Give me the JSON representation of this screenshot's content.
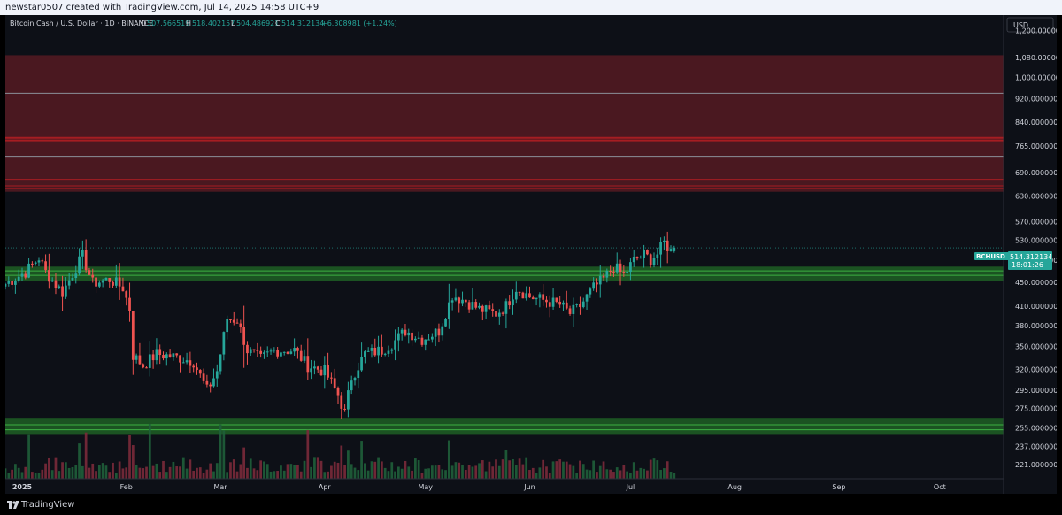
{
  "header": {
    "attribution": "newstar0507 created with TradingView.com, Jul 14, 2025 14:58 UTC+9"
  },
  "footer": {
    "brand": "TradingView"
  },
  "legend": {
    "symbol": "Bitcoin Cash / U.S. Dollar · 1D · BINANCE",
    "o_label": "O",
    "o_value": "507.566519",
    "h_label": "H",
    "h_value": "518.402157",
    "l_label": "L",
    "l_value": "504.486921",
    "c_label": "C",
    "c_value": "514.312134",
    "change": "+6.308981 (+1.24%)"
  },
  "price_tag": {
    "ticker": "BCHUSD",
    "price": "514.312134",
    "countdown": "18:01:26"
  },
  "colors": {
    "up": "#26a69a",
    "down": "#ef5350",
    "resistance_zone": "#4a1820",
    "resistance_line": "#a51d22",
    "support_zone": "#1e5f24",
    "support_line": "#3cb043",
    "background": "#0d1017",
    "axis_text": "#d1d4dc"
  },
  "chart_data": {
    "type": "candlestick",
    "currency": "USD",
    "y_scale": "log",
    "ylim": [
      209,
      1275
    ],
    "y_ticks": [
      {
        "value": 1200,
        "label": "1,200.000000"
      },
      {
        "value": 1080,
        "label": "1,080.000000"
      },
      {
        "value": 1000,
        "label": "1,000.000000"
      },
      {
        "value": 920,
        "label": "920.000000"
      },
      {
        "value": 840,
        "label": "840.000000"
      },
      {
        "value": 765,
        "label": "765.000000"
      },
      {
        "value": 690,
        "label": "690.000000"
      },
      {
        "value": 630,
        "label": "630.000000"
      },
      {
        "value": 570,
        "label": "570.000000"
      },
      {
        "value": 530,
        "label": "530.000000"
      },
      {
        "value": 490,
        "label": "490.000000"
      },
      {
        "value": 450,
        "label": "450.000000"
      },
      {
        "value": 410,
        "label": "410.000000"
      },
      {
        "value": 380,
        "label": "380.000000"
      },
      {
        "value": 350,
        "label": "350.000000"
      },
      {
        "value": 320,
        "label": "320.000000"
      },
      {
        "value": 295,
        "label": "295.000000"
      },
      {
        "value": 275,
        "label": "275.000000"
      },
      {
        "value": 255,
        "label": "255.000000"
      },
      {
        "value": 237,
        "label": "237.000000"
      },
      {
        "value": 221,
        "label": "221.000000"
      }
    ],
    "x_ticks": [
      {
        "date": "2025-01-01",
        "label": "2025"
      },
      {
        "date": "2025-02-01",
        "label": "Feb"
      },
      {
        "date": "2025-03-01",
        "label": "Mar"
      },
      {
        "date": "2025-04-01",
        "label": "Apr"
      },
      {
        "date": "2025-05-01",
        "label": "May"
      },
      {
        "date": "2025-06-01",
        "label": "Jun"
      },
      {
        "date": "2025-07-01",
        "label": "Jul"
      },
      {
        "date": "2025-08-01",
        "label": "Aug"
      },
      {
        "date": "2025-09-01",
        "label": "Sep"
      },
      {
        "date": "2025-10-01",
        "label": "Oct"
      }
    ],
    "xlim": [
      "2024-12-27",
      "2025-10-20"
    ],
    "last_price": 514.312134,
    "resistance_zones": [
      [
        640,
        1090
      ]
    ],
    "resistance_lines": [
      940,
      790,
      782,
      735,
      672,
      655,
      648
    ],
    "support_zones": [
      [
        452,
        478
      ],
      [
        248,
        265
      ]
    ],
    "support_lines": [
      470,
      462,
      258,
      253
    ],
    "ohlc_anchors": [
      {
        "date": "2024-12-27",
        "close": 447
      },
      {
        "date": "2025-01-02",
        "close": 468
      },
      {
        "date": "2025-01-06",
        "close": 495
      },
      {
        "date": "2025-01-08",
        "close": 468
      },
      {
        "date": "2025-01-13",
        "close": 432
      },
      {
        "date": "2025-01-16",
        "close": 465
      },
      {
        "date": "2025-01-19",
        "close": 498
      },
      {
        "date": "2025-01-22",
        "close": 448
      },
      {
        "date": "2025-01-27",
        "close": 455
      },
      {
        "date": "2025-01-31",
        "close": 440
      },
      {
        "date": "2025-02-02",
        "close": 405
      },
      {
        "date": "2025-02-03",
        "close": 338
      },
      {
        "date": "2025-02-06",
        "close": 325
      },
      {
        "date": "2025-02-10",
        "close": 340
      },
      {
        "date": "2025-02-17",
        "close": 335
      },
      {
        "date": "2025-02-21",
        "close": 330
      },
      {
        "date": "2025-02-25",
        "close": 295
      },
      {
        "date": "2025-02-28",
        "close": 318
      },
      {
        "date": "2025-03-03",
        "close": 390
      },
      {
        "date": "2025-03-06",
        "close": 388
      },
      {
        "date": "2025-03-09",
        "close": 345
      },
      {
        "date": "2025-03-13",
        "close": 333
      },
      {
        "date": "2025-03-17",
        "close": 345
      },
      {
        "date": "2025-03-23",
        "close": 345
      },
      {
        "date": "2025-03-27",
        "close": 325
      },
      {
        "date": "2025-04-01",
        "close": 318
      },
      {
        "date": "2025-04-05",
        "close": 290
      },
      {
        "date": "2025-04-07",
        "close": 270
      },
      {
        "date": "2025-04-09",
        "close": 310
      },
      {
        "date": "2025-04-13",
        "close": 340
      },
      {
        "date": "2025-04-18",
        "close": 345
      },
      {
        "date": "2025-04-22",
        "close": 358
      },
      {
        "date": "2025-04-25",
        "close": 372
      },
      {
        "date": "2025-04-30",
        "close": 360
      },
      {
        "date": "2025-05-05",
        "close": 372
      },
      {
        "date": "2025-05-09",
        "close": 428
      },
      {
        "date": "2025-05-13",
        "close": 418
      },
      {
        "date": "2025-05-17",
        "close": 405
      },
      {
        "date": "2025-05-22",
        "close": 398
      },
      {
        "date": "2025-05-25",
        "close": 410
      },
      {
        "date": "2025-05-28",
        "close": 440
      },
      {
        "date": "2025-06-01",
        "close": 425
      },
      {
        "date": "2025-06-06",
        "close": 418
      },
      {
        "date": "2025-06-10",
        "close": 412
      },
      {
        "date": "2025-06-13",
        "close": 398
      },
      {
        "date": "2025-06-16",
        "close": 410
      },
      {
        "date": "2025-06-20",
        "close": 440
      },
      {
        "date": "2025-06-23",
        "close": 455
      },
      {
        "date": "2025-06-26",
        "close": 478
      },
      {
        "date": "2025-06-29",
        "close": 462
      },
      {
        "date": "2025-07-02",
        "close": 490
      },
      {
        "date": "2025-07-05",
        "close": 500
      },
      {
        "date": "2025-07-07",
        "close": 492
      },
      {
        "date": "2025-07-09",
        "close": 502
      },
      {
        "date": "2025-07-11",
        "close": 525
      },
      {
        "date": "2025-07-13",
        "close": 508
      },
      {
        "date": "2025-07-14",
        "close": 514.312134
      }
    ]
  }
}
